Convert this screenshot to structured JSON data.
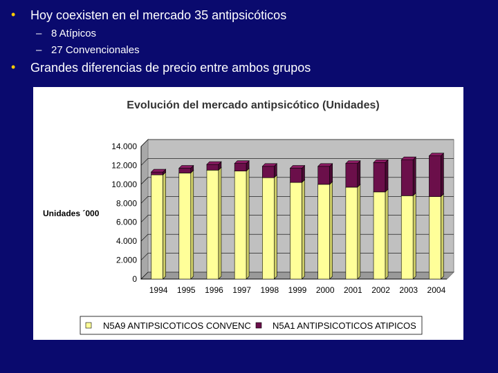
{
  "bullets": [
    {
      "text": "Hoy coexisten en el mercado 35 antipsicóticos",
      "sub": [
        "8 Atípicos",
        "27 Convencionales"
      ]
    },
    {
      "text": "Grandes diferencias de precio entre ambos grupos",
      "sub": []
    }
  ],
  "colors": {
    "background": "#0a0a6e",
    "bullet": "#ffcc00",
    "conv": "#ffff99",
    "atip": "#6b0f4a",
    "plot_bg": "#c0c0c0"
  },
  "chart_data": {
    "type": "bar",
    "stacked": true,
    "title": "Evolución del mercado antipsicótico (Unidades)",
    "ylabel": "Unidades ´000",
    "xlabel": "",
    "categories": [
      "1994",
      "1995",
      "1996",
      "1997",
      "1998",
      "1999",
      "2000",
      "2001",
      "2002",
      "2003",
      "2004"
    ],
    "series": [
      {
        "name": "N5A9  ANTIPSICOTICOS CONVENC",
        "values": [
          11000,
          11200,
          11500,
          11400,
          10700,
          10200,
          10000,
          9700,
          9200,
          8800,
          8700
        ]
      },
      {
        "name": "N5A1  ANTIPSICOTICOS ATIPICOS",
        "values": [
          300,
          500,
          600,
          800,
          1200,
          1500,
          1900,
          2500,
          3100,
          3800,
          4300
        ]
      }
    ],
    "ylim": [
      0,
      14000
    ],
    "yticks": [
      "0",
      "2.000",
      "4.000",
      "6.000",
      "8.000",
      "10.000",
      "12.000",
      "14.000"
    ],
    "grid": true,
    "legend": "bottom"
  }
}
